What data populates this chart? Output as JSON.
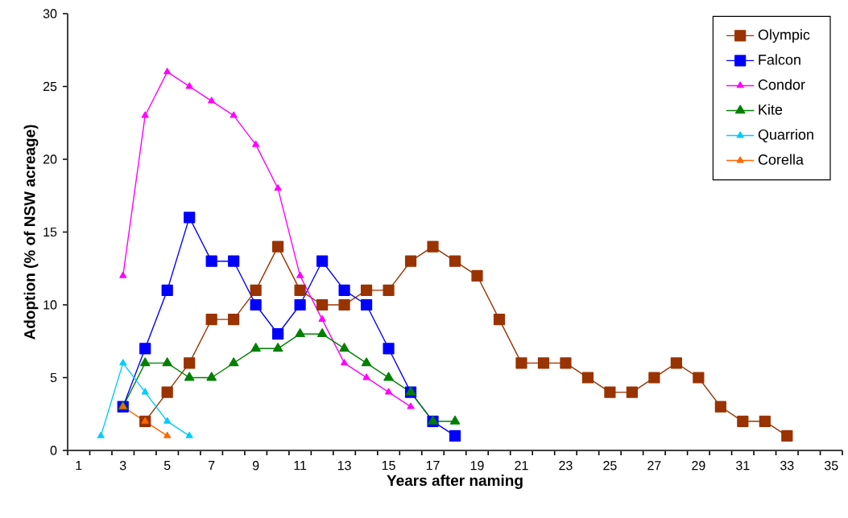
{
  "chart_data": {
    "type": "line",
    "xlabel": "Years after naming",
    "ylabel": "Adoption (% of NSW acreage)",
    "categories": [
      "1",
      null,
      "3",
      null,
      "5",
      null,
      "7",
      null,
      "9",
      null,
      "11",
      null,
      "13",
      null,
      "15",
      null,
      "17",
      null,
      "19",
      null,
      "21",
      null,
      "23",
      null,
      "25",
      null,
      "27",
      null,
      "29",
      null,
      "31",
      null,
      "33",
      null,
      "35"
    ],
    "series": [
      {
        "name": "Olympic",
        "color": "#993300",
        "marker": "square",
        "values": [
          null,
          null,
          null,
          2,
          4,
          6,
          9,
          9,
          11,
          14,
          11,
          10,
          10,
          11,
          11,
          13,
          14,
          13,
          12,
          9,
          6,
          6,
          6,
          5,
          4,
          4,
          5,
          6,
          5,
          3,
          2,
          2,
          1,
          null,
          null
        ]
      },
      {
        "name": "Falcon",
        "color": "#0000ff",
        "marker": "square",
        "values": [
          null,
          null,
          3,
          7,
          11,
          16,
          13,
          13,
          10,
          8,
          10,
          13,
          11,
          10,
          7,
          4,
          2,
          1,
          null,
          null,
          null,
          null,
          null,
          null,
          null,
          null,
          null,
          null,
          null,
          null,
          null,
          null,
          null,
          null,
          null
        ]
      },
      {
        "name": "Condor",
        "color": "#ff00ff",
        "marker": "triangle",
        "values": [
          null,
          null,
          12,
          23,
          26,
          25,
          24,
          23,
          21,
          18,
          12,
          9,
          6,
          5,
          4,
          3,
          null,
          null,
          null,
          null,
          null,
          null,
          null,
          null,
          null,
          null,
          null,
          null,
          null,
          null,
          null,
          null,
          null,
          null,
          null
        ]
      },
      {
        "name": "Kite",
        "color": "#008000",
        "marker": "triangle",
        "values": [
          null,
          null,
          3,
          6,
          6,
          5,
          5,
          6,
          7,
          7,
          8,
          8,
          7,
          6,
          5,
          4,
          2,
          2,
          null,
          null,
          null,
          null,
          null,
          null,
          null,
          null,
          null,
          null,
          null,
          null,
          null,
          null,
          null,
          null,
          null
        ]
      },
      {
        "name": "Quarrion",
        "color": "#00ccff",
        "marker": "triangle",
        "values": [
          null,
          1,
          6,
          4,
          2,
          1,
          null,
          null,
          null,
          null,
          null,
          null,
          null,
          null,
          null,
          null,
          null,
          null,
          null,
          null,
          null,
          null,
          null,
          null,
          null,
          null,
          null,
          null,
          null,
          null,
          null,
          null,
          null,
          null,
          null
        ]
      },
      {
        "name": "Corella",
        "color": "#ff6600",
        "marker": "triangle",
        "values": [
          null,
          null,
          3,
          2,
          1,
          null,
          null,
          null,
          null,
          null,
          null,
          null,
          null,
          null,
          null,
          null,
          null,
          null,
          null,
          null,
          null,
          null,
          null,
          null,
          null,
          null,
          null,
          null,
          null,
          null,
          null,
          null,
          null,
          null,
          null
        ]
      }
    ],
    "ylim": [
      0,
      30
    ],
    "yticks": [
      0,
      5,
      10,
      15,
      20,
      25,
      30
    ],
    "grid": false,
    "legend": "top right",
    "line_style": "solid"
  }
}
